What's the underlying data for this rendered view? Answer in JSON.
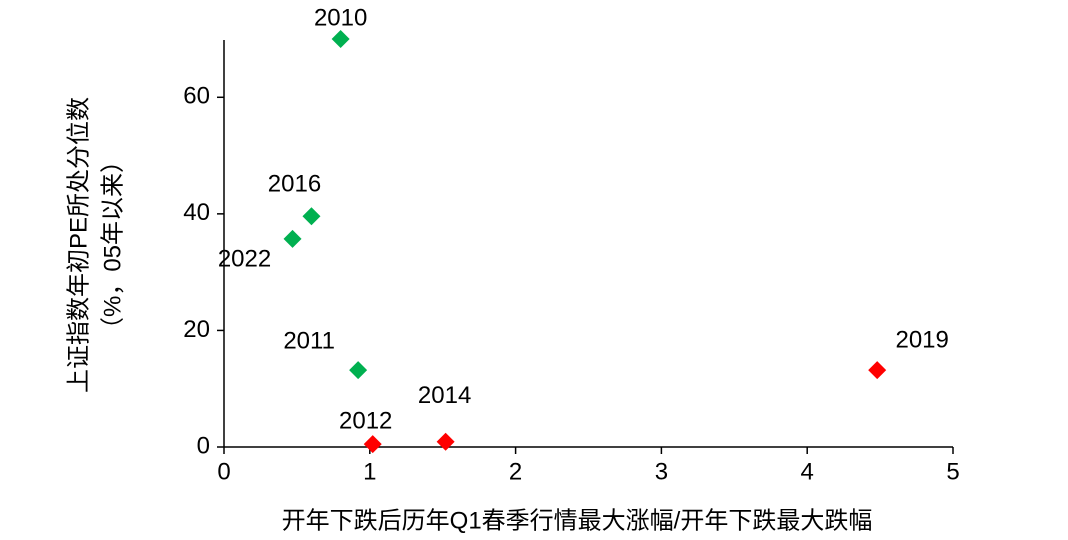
{
  "chart_data": {
    "type": "scatter",
    "x_label": "开年下跌后历年Q1春季行情最大涨幅/开年下跌最大跌幅",
    "y_label": [
      "上证指数年初PE所处分位数",
      "（%，05年以来）"
    ],
    "xlim": [
      0,
      5
    ],
    "xticks": [
      0,
      1,
      2,
      3,
      4,
      5
    ],
    "ylim": [
      0,
      70
    ],
    "yticks": [
      0,
      20,
      40,
      60
    ],
    "points": [
      {
        "label": "2010",
        "x": 0.8,
        "y": 70,
        "color": "#00b050"
      },
      {
        "label": "2016",
        "x": 0.6,
        "y": 39.6,
        "color": "#00b050"
      },
      {
        "label": "2022",
        "x": 0.47,
        "y": 35.7,
        "color": "#00b050"
      },
      {
        "label": "2011",
        "x": 0.92,
        "y": 13.2,
        "color": "#00b050"
      },
      {
        "label": "2012",
        "x": 1.02,
        "y": 0.5,
        "color": "#ff0000"
      },
      {
        "label": "2014",
        "x": 1.52,
        "y": 0.9,
        "color": "#ff0000"
      },
      {
        "label": "2019",
        "x": 4.48,
        "y": 13.2,
        "color": "#ff0000"
      }
    ]
  }
}
